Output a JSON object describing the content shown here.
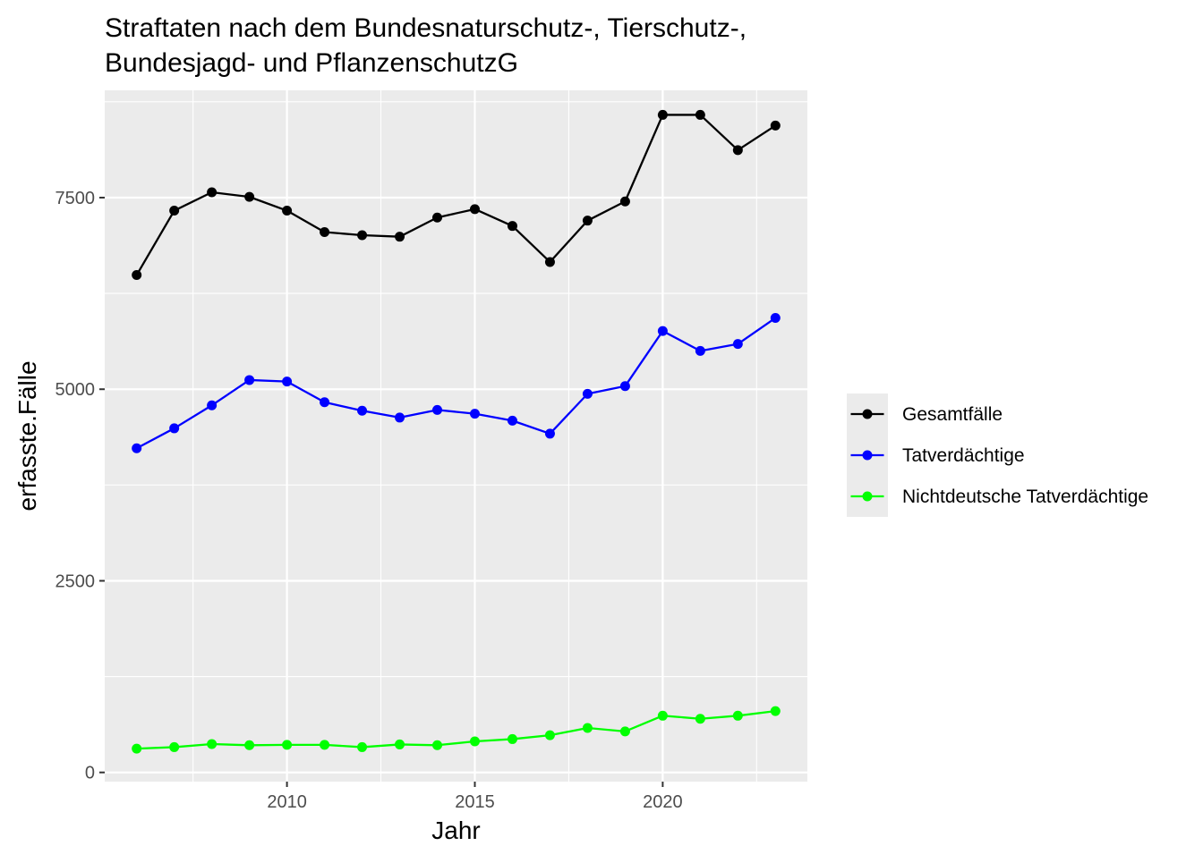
{
  "chart_data": {
    "type": "line",
    "title_lines": [
      "Straftaten nach dem Bundesnaturschutz-, Tierschutz-,",
      "Bundesjagd- und PflanzenschutzG"
    ],
    "xlabel": "Jahr",
    "ylabel": "erfasste.Fälle",
    "x": [
      2006,
      2007,
      2008,
      2009,
      2010,
      2011,
      2012,
      2013,
      2014,
      2015,
      2016,
      2017,
      2018,
      2019,
      2020,
      2021,
      2022,
      2023
    ],
    "xlim": [
      2005.15,
      2023.85
    ],
    "ylim": [
      -120,
      8900
    ],
    "x_ticks": [
      2010,
      2015,
      2020
    ],
    "x_tick_labels": [
      "2010",
      "2015",
      "2020"
    ],
    "x_minor_ticks": [
      2007.5,
      2012.5,
      2017.5,
      2022.5
    ],
    "y_ticks": [
      0,
      2500,
      5000,
      7500
    ],
    "y_tick_labels": [
      "0",
      "2500",
      "5000",
      "7500"
    ],
    "y_minor_ticks": [
      1250,
      3750,
      6250,
      8750
    ],
    "grid": true,
    "legend_position": "right",
    "series": [
      {
        "name": "Gesamtfälle",
        "color": "#000000",
        "values": [
          6490,
          7330,
          7570,
          7510,
          7330,
          7050,
          7010,
          6990,
          7240,
          7350,
          7130,
          6660,
          7200,
          7450,
          8580,
          8580,
          8120,
          8440
        ]
      },
      {
        "name": "Tatverdächtige",
        "color": "#0000ff",
        "values": [
          4230,
          4490,
          4790,
          5120,
          5100,
          4830,
          4720,
          4630,
          4730,
          4680,
          4590,
          4420,
          4940,
          5040,
          5760,
          5500,
          5590,
          5930
        ]
      },
      {
        "name": "Nichtdeutsche Tatverdächtige",
        "color": "#00ff00",
        "values": [
          310,
          330,
          370,
          355,
          360,
          360,
          330,
          365,
          355,
          405,
          435,
          485,
          580,
          535,
          740,
          700,
          740,
          800
        ]
      }
    ],
    "panel_background": "#ebebeb",
    "grid_color": "#ffffff"
  }
}
